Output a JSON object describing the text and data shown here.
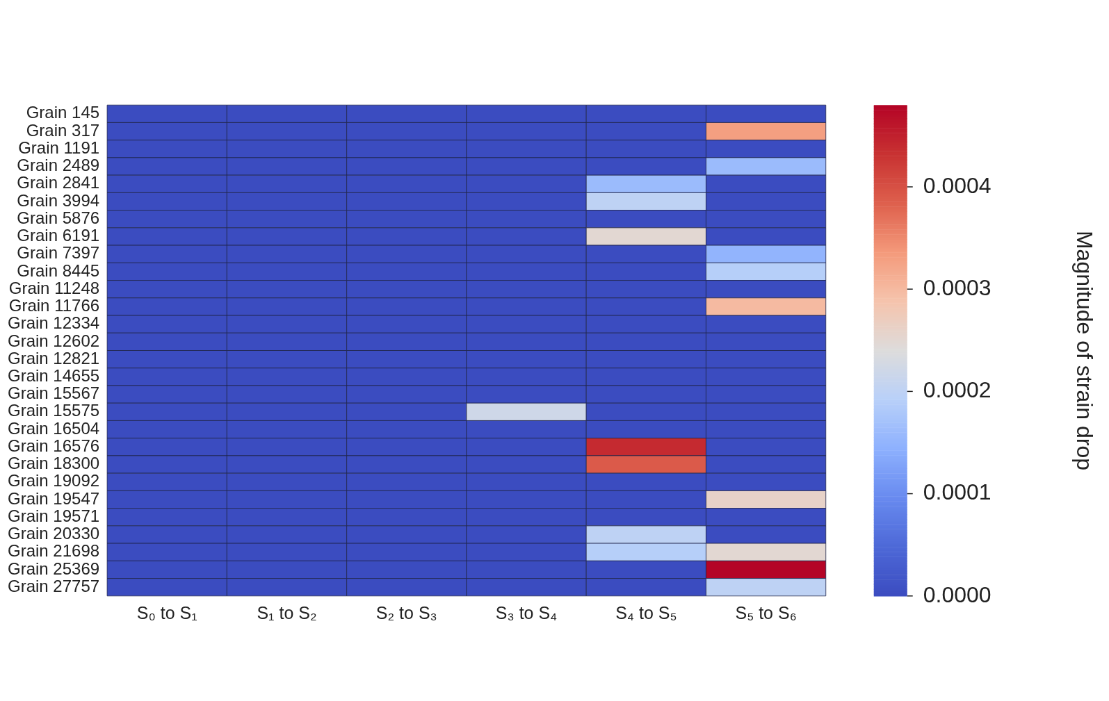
{
  "chart_data": {
    "type": "heatmap",
    "clabel": "Magnitude of strain drop",
    "categories": [
      "S₀ to S₁",
      "S₁ to S₂",
      "S₂ to S₃",
      "S₃ to S₄",
      "S₄ to S₅",
      "S₅ to S₆"
    ],
    "y_categories": [
      "Grain 145",
      "Grain 317",
      "Grain 1191",
      "Grain 2489",
      "Grain 2841",
      "Grain 3994",
      "Grain 5876",
      "Grain 6191",
      "Grain 7397",
      "Grain 8445",
      "Grain 11248",
      "Grain 11766",
      "Grain 12334",
      "Grain 12602",
      "Grain 12821",
      "Grain 14655",
      "Grain 15567",
      "Grain 15575",
      "Grain 16504",
      "Grain 16576",
      "Grain 18300",
      "Grain 19092",
      "Grain 19547",
      "Grain 19571",
      "Grain 20330",
      "Grain 21698",
      "Grain 25369",
      "Grain 27757"
    ],
    "cells": [
      [
        0,
        0,
        0,
        0,
        0,
        0
      ],
      [
        0,
        0,
        0,
        0,
        0,
        0.00033
      ],
      [
        0,
        0,
        0,
        0,
        0,
        0
      ],
      [
        0,
        0,
        0,
        0,
        0,
        0.00016
      ],
      [
        0,
        0,
        0,
        0,
        0.00016,
        0
      ],
      [
        0,
        0,
        0,
        0,
        0.0002,
        0
      ],
      [
        0,
        0,
        0,
        0,
        0,
        0
      ],
      [
        0,
        0,
        0,
        0,
        0.00025,
        0
      ],
      [
        0,
        0,
        0,
        0,
        0,
        0.00015
      ],
      [
        0,
        0,
        0,
        0,
        0,
        0.00019
      ],
      [
        0,
        0,
        0,
        0,
        0,
        0
      ],
      [
        0,
        0,
        0,
        0,
        0,
        0.0003
      ],
      [
        0,
        0,
        0,
        0,
        0,
        0
      ],
      [
        0,
        0,
        0,
        0,
        0,
        0
      ],
      [
        0,
        0,
        0,
        0,
        0,
        0
      ],
      [
        0,
        0,
        0,
        0,
        0,
        0
      ],
      [
        0,
        0,
        0,
        0,
        0,
        0
      ],
      [
        0,
        0,
        0,
        0.00022,
        0,
        0
      ],
      [
        0,
        0,
        0,
        0,
        0,
        0
      ],
      [
        0,
        0,
        0,
        0,
        0.00044,
        0
      ],
      [
        0,
        0,
        0,
        0,
        0.00039,
        0
      ],
      [
        0,
        0,
        0,
        0,
        0,
        0
      ],
      [
        0,
        0,
        0,
        0,
        0,
        0.00026
      ],
      [
        0,
        0,
        0,
        0,
        0,
        0
      ],
      [
        0,
        0,
        0,
        0,
        0.0002,
        0
      ],
      [
        0,
        0,
        0,
        0,
        0.00019,
        0.00025
      ],
      [
        0,
        0,
        0,
        0,
        0,
        0.00048
      ],
      [
        0,
        0,
        0,
        0,
        0,
        0.0002
      ]
    ],
    "clim": [
      0,
      0.00048
    ],
    "cticks": [
      {
        "value": 0,
        "label": "0.0000"
      },
      {
        "value": 0.0001,
        "label": "0.0001"
      },
      {
        "value": 0.0002,
        "label": "0.0002"
      },
      {
        "value": 0.0003,
        "label": "0.0003"
      },
      {
        "value": 0.0004,
        "label": "0.0004"
      }
    ]
  }
}
